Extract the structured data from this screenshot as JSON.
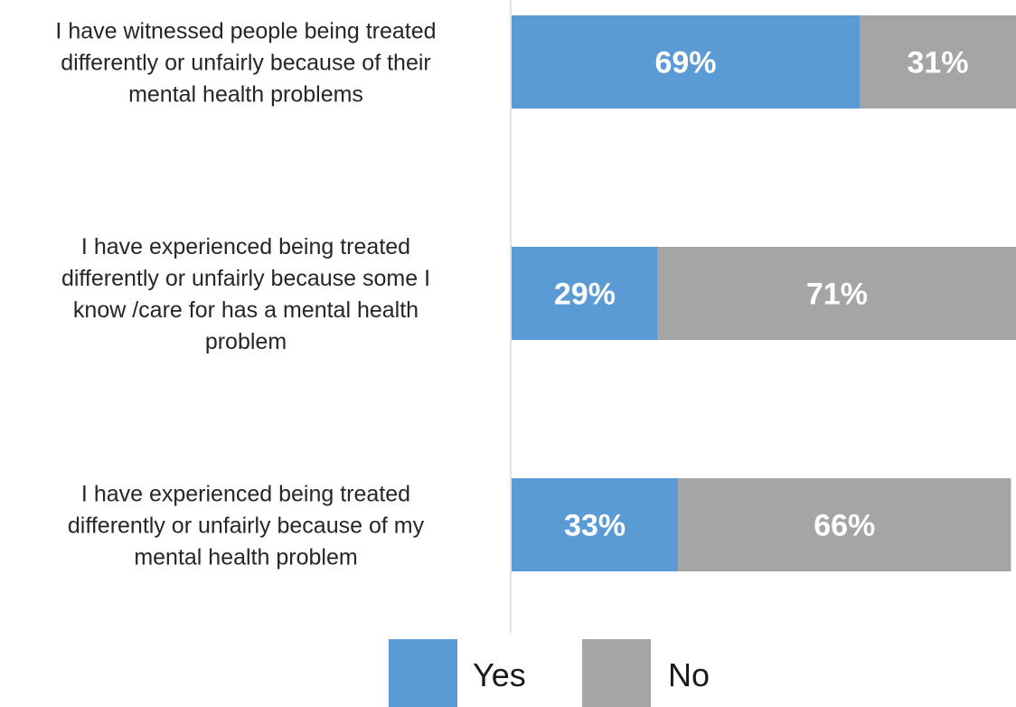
{
  "chart_data": {
    "type": "bar",
    "orientation": "horizontal",
    "stacked": true,
    "categories": [
      "I have witnessed people being treated differently or unfairly because of their mental health problems",
      "I have experienced being treated differently or unfairly because some I know /care for has a mental health problem",
      "I have experienced being treated differently or unfairly because of my mental health problem"
    ],
    "category_lines": [
      [
        "I have witnessed people being treated",
        "differently or unfairly because of their",
        "mental health problems"
      ],
      [
        "I have experienced being treated",
        "differently or unfairly because some I",
        "know /care for has a mental health",
        "problem"
      ],
      [
        "I have experienced being treated",
        "differently or unfairly because of my",
        "mental health problem"
      ]
    ],
    "series": [
      {
        "name": "Yes",
        "values": [
          69,
          29,
          33
        ],
        "labels": [
          "69%",
          "29%",
          "33%"
        ],
        "color": "#5b9bd5"
      },
      {
        "name": "No",
        "values": [
          31,
          71,
          66
        ],
        "labels": [
          "31%",
          "71%",
          "66%"
        ],
        "color": "#a5a5a5"
      }
    ],
    "xlim": [
      0,
      100
    ],
    "unit": "%",
    "grid": false,
    "legend_position": "bottom",
    "title": "",
    "xlabel": "",
    "ylabel": ""
  }
}
